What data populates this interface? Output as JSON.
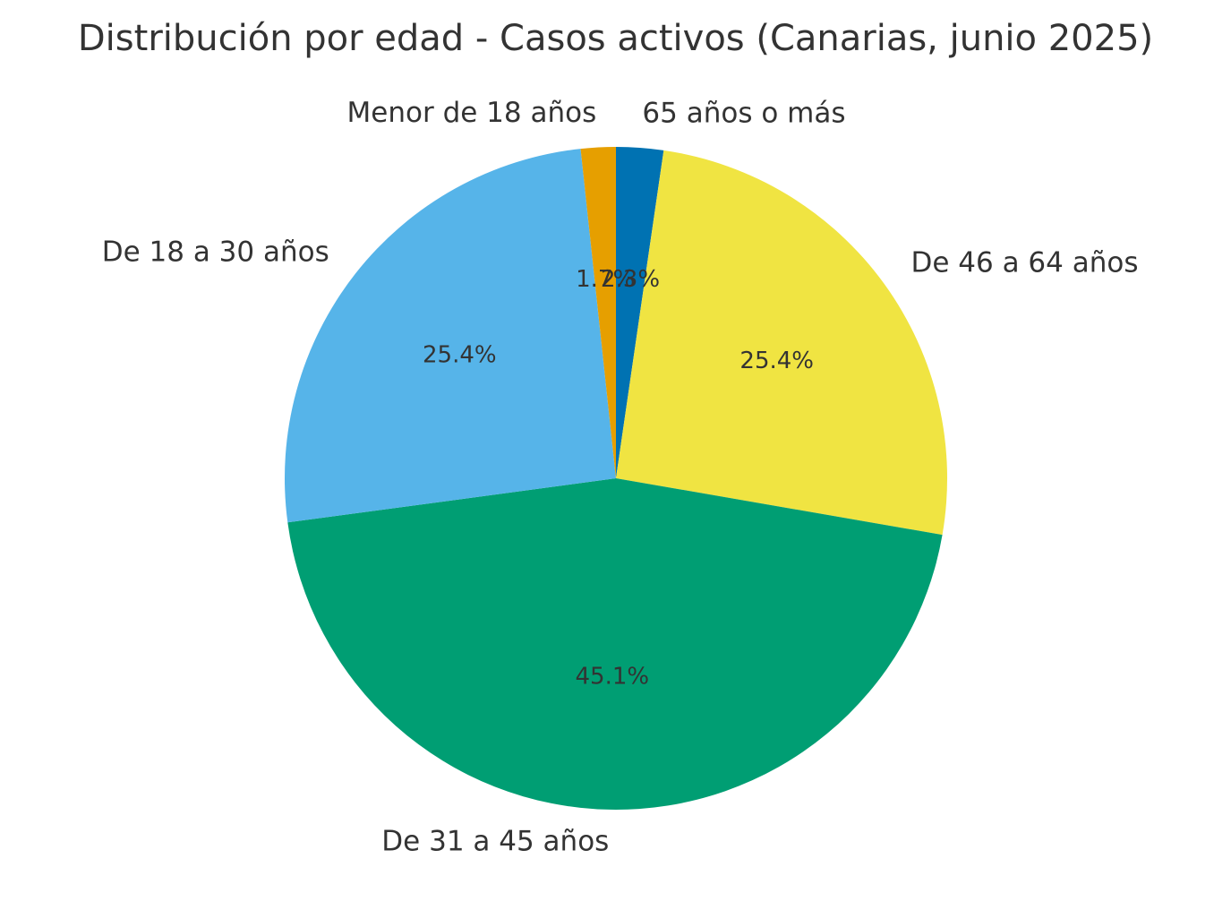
{
  "chart_data": {
    "type": "pie",
    "title": "Distribución por edad - Casos activos (Canarias, junio 2025)",
    "start_angle_deg": 90,
    "direction": "clockwise",
    "legend": "none",
    "slices": [
      {
        "label": "65 años o más",
        "value": 2.3,
        "pct_label": "2.3%",
        "color": "#0072B2"
      },
      {
        "label": "De 46 a 64 años",
        "value": 25.4,
        "pct_label": "25.4%",
        "color": "#F0E442"
      },
      {
        "label": "De 31 a 45 años",
        "value": 45.1,
        "pct_label": "45.1%",
        "color": "#009E73"
      },
      {
        "label": "De 18 a 30 años",
        "value": 25.4,
        "pct_label": "25.4%",
        "color": "#56B4E9"
      },
      {
        "label": "Menor de 18 años",
        "value": 1.7,
        "pct_label": "1.7%",
        "color": "#E69F00"
      }
    ]
  }
}
